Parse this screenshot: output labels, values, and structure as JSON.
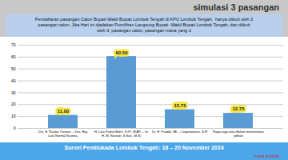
{
  "chart_data": {
    "type": "bar",
    "title": "simulasi 3 pasangan",
    "annotations": [
      "Pendaftaran pasangan Calon Bupati-Wakil Bupati Lombok Tengah di KPU Lombok Tengah,  hanya diikuti oleh 3\npasangan calon. Jika Hari ini diadakan Pemilihan Langsung Bupati -Wakil Bupati Lombok Tengah, dan diikuti\noleh 3  pasangan calon, pasangan mana yang d",
      "Survei Pemilukada Lombok Tengah: 18 – 20 November 2024",
      "nusra institute"
    ],
    "categories": [
      "Drs. H. Ruslan Turmuz. – Drs. Haji.\nLalu Normal Susena.",
      "H. Lalu Pathul Bahri, S.IP., M.AP. – Dr.\nH. M. Nursiah, S.Sos., M.Si.",
      "Dr. H. Puaddi, SE. – Legewannan, S.IP.",
      "Ragu-ragu atau Belum menentukan\npilihan"
    ],
    "values": [
      11.0,
      60.5,
      15.75,
      12.75
    ],
    "value_labels": [
      "11.00",
      "60.50",
      "15.75",
      "12.75"
    ],
    "data_labels": true,
    "color": "#5b9bd5",
    "ylim": [
      0,
      70
    ],
    "yticks": [
      0,
      10,
      20,
      30,
      40,
      50,
      60,
      70
    ],
    "grid": true
  }
}
